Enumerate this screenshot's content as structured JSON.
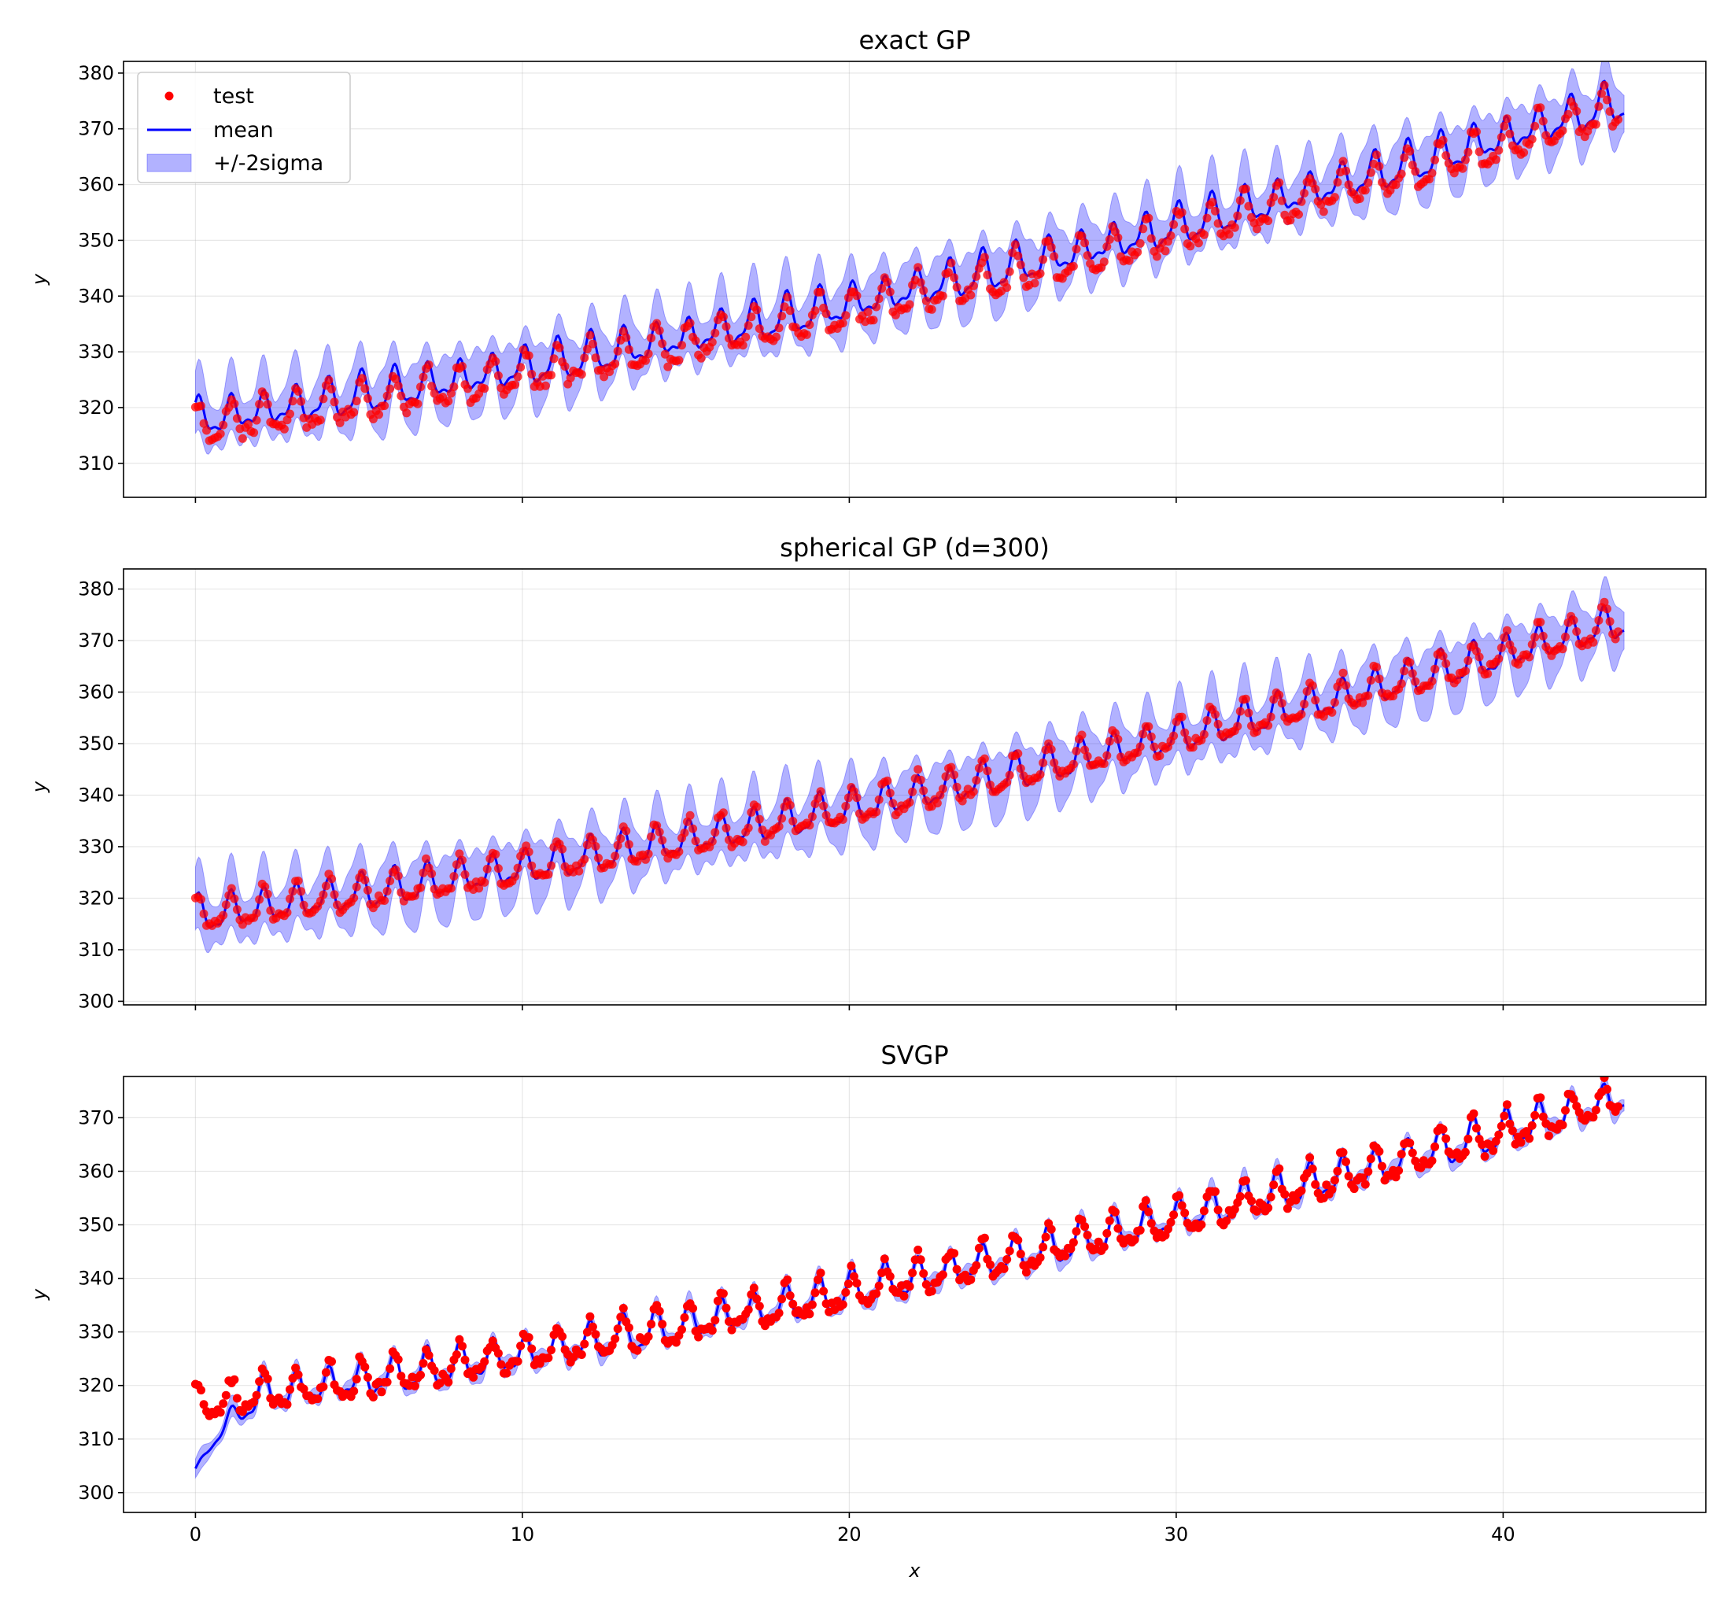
{
  "chart_data": [
    {
      "type": "line",
      "title": "exact GP",
      "xlabel": "",
      "ylabel": "y",
      "xlim": [
        -2.2,
        46.2
      ],
      "ylim": [
        303.9,
        382.1
      ],
      "xticks": [
        0,
        10,
        20,
        30,
        40
      ],
      "yticks": [
        310,
        320,
        330,
        340,
        350,
        360,
        370,
        380
      ],
      "show_x_tick_labels": false,
      "grid": true,
      "legend": {
        "placement": "upper-left",
        "entries": [
          "test",
          "mean",
          "+/-2sigma"
        ]
      },
      "model": {
        "base": 316.5,
        "trend_linear": 0.82,
        "trend_quadratic": 0.0112,
        "amplitude": 3.0,
        "period": 1,
        "mean_offset": 1.3,
        "mean_jitter": 1.0,
        "band_halfwidth": 4.8,
        "point_noise": 1.0,
        "point_alpha": 0.75
      },
      "series": [
        {
          "name": "test",
          "kind": "scatter",
          "color": "#ff0000"
        },
        {
          "name": "mean",
          "kind": "line",
          "color": "#0000ff"
        },
        {
          "name": "+/-2sigma",
          "kind": "band",
          "color": "#0000ff"
        }
      ]
    },
    {
      "type": "line",
      "title": "spherical GP (d=300)",
      "xlabel": "",
      "ylabel": "y",
      "xlim": [
        -2.2,
        46.2
      ],
      "ylim": [
        299.3,
        383.9
      ],
      "xticks": [
        0,
        10,
        20,
        30,
        40
      ],
      "yticks": [
        300,
        310,
        320,
        330,
        340,
        350,
        360,
        370,
        380
      ],
      "show_x_tick_labels": false,
      "grid": true,
      "model": {
        "base": 316.5,
        "trend_linear": 0.82,
        "trend_quadratic": 0.0112,
        "amplitude": 3.0,
        "period": 1,
        "mean_offset": 0.0,
        "mean_jitter": 0.6,
        "band_halfwidth": 5.2,
        "point_noise": 0.8,
        "point_alpha": 0.75
      },
      "series": [
        {
          "name": "test",
          "kind": "scatter",
          "color": "#ff0000"
        },
        {
          "name": "mean",
          "kind": "line",
          "color": "#0000ff"
        },
        {
          "name": "+/-2sigma",
          "kind": "band",
          "color": "#0000ff"
        }
      ]
    },
    {
      "type": "line",
      "title": "SVGP",
      "xlabel": "x",
      "ylabel": "y",
      "xlim": [
        -2.2,
        46.2
      ],
      "ylim": [
        296.3,
        377.7
      ],
      "xticks": [
        0,
        10,
        20,
        30,
        40
      ],
      "yticks": [
        300,
        310,
        320,
        330,
        340,
        350,
        360,
        370
      ],
      "show_x_tick_labels": true,
      "grid": true,
      "model": {
        "base": 316.5,
        "trend_linear": 0.82,
        "trend_quadratic": 0.0112,
        "amplitude": 3.0,
        "period": 1,
        "mean_offset": 0.0,
        "mean_jitter": 0.8,
        "band_halfwidth": 1.5,
        "point_noise": 1.1,
        "point_alpha": 1.0,
        "start_dip": {
          "y0": 304.5,
          "until": 2.0
        }
      },
      "series": [
        {
          "name": "test",
          "kind": "scatter",
          "color": "#ff0000"
        },
        {
          "name": "mean",
          "kind": "line",
          "color": "#0000ff"
        },
        {
          "name": "+/-2sigma",
          "kind": "band",
          "color": "#0000ff"
        }
      ]
    }
  ]
}
